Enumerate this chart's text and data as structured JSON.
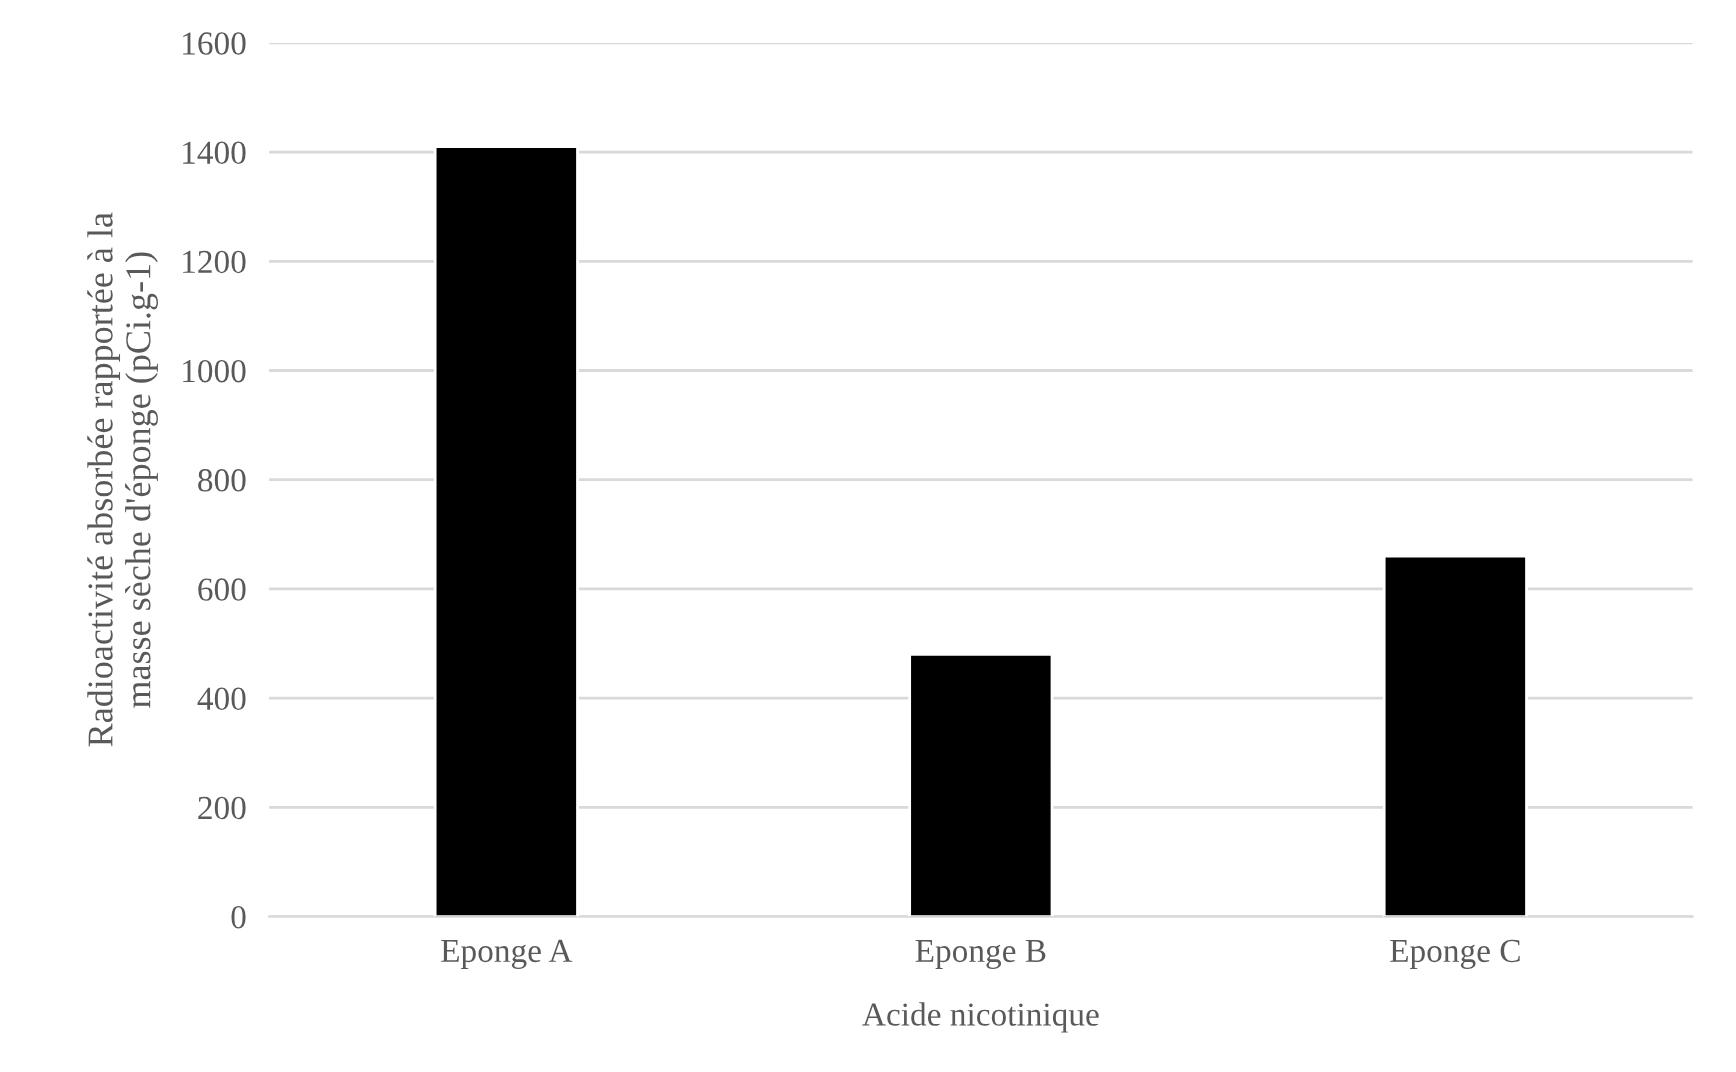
{
  "chart_data": {
    "type": "bar",
    "xlabel": "Acide nicotinique",
    "ylabel": "Radioactivité absorbée rapportée à la masse sèche d'éponge (pCi.g-1)",
    "categories": [
      "Eponge A",
      "Eponge B",
      "Eponge C"
    ],
    "values": [
      1410,
      480,
      660
    ],
    "color": "#000000",
    "ylim": [
      0,
      1600
    ],
    "yticks": [
      0,
      200,
      400,
      600,
      800,
      1000,
      1200,
      1400,
      1600
    ],
    "grid": "y",
    "legend": false
  }
}
